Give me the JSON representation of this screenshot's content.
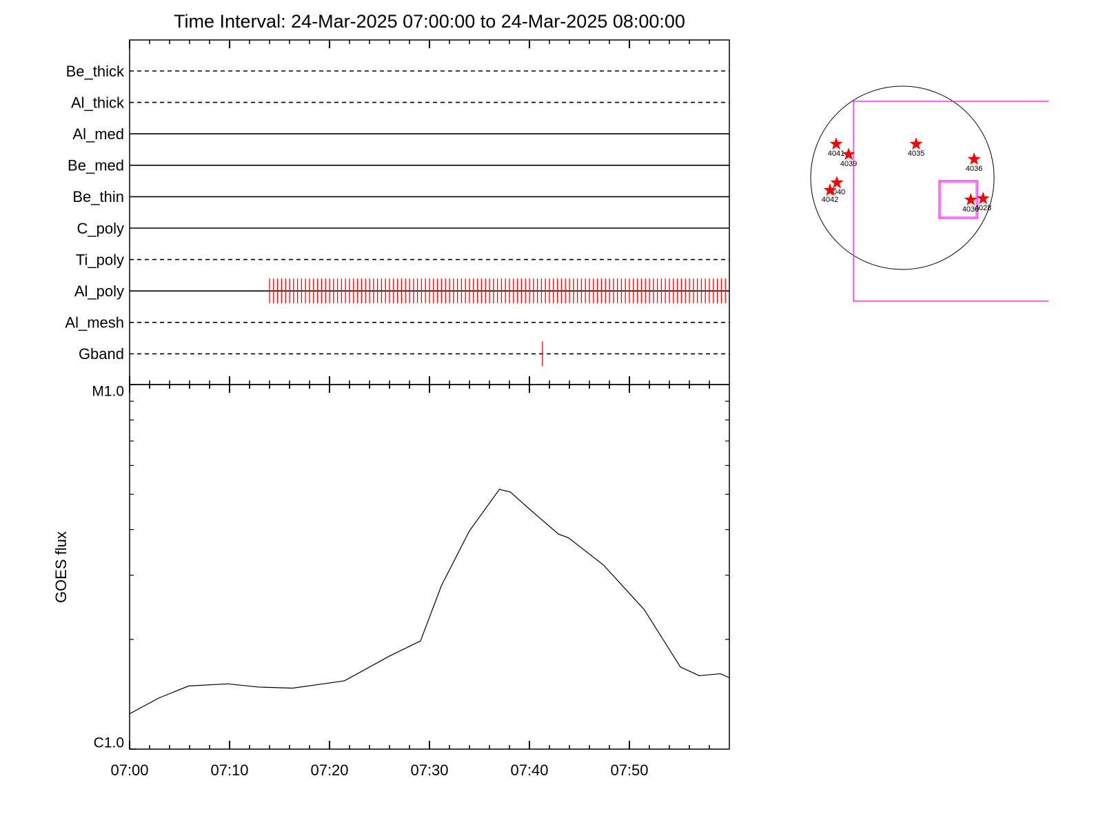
{
  "chart_data": [
    {
      "type": "timeline",
      "title": "Time Interval: 24-Mar-2025 07:00:00 to 24-Mar-2025 08:00:00",
      "xlim": [
        0,
        60
      ],
      "xticks": [
        {
          "value": 0,
          "label": "07:00"
        },
        {
          "value": 10,
          "label": "07:10"
        },
        {
          "value": 20,
          "label": "07:20"
        },
        {
          "value": 30,
          "label": "07:30"
        },
        {
          "value": 40,
          "label": "07:40"
        },
        {
          "value": 50,
          "label": "07:50"
        }
      ],
      "xminorticks": [
        2,
        4,
        6,
        8,
        12,
        14,
        16,
        18,
        22,
        24,
        26,
        28,
        32,
        34,
        36,
        38,
        42,
        44,
        46,
        48,
        52,
        54,
        56,
        58
      ],
      "event_color": "#ff0000",
      "series": [
        {
          "name": "Be_thick",
          "style": "dashed",
          "events": []
        },
        {
          "name": "Al_thick",
          "style": "dashed",
          "events": []
        },
        {
          "name": "Al_med",
          "style": "solid",
          "events": []
        },
        {
          "name": "Be_med",
          "style": "solid",
          "events": []
        },
        {
          "name": "Be_thin",
          "style": "solid",
          "events": []
        },
        {
          "name": "C_poly",
          "style": "solid",
          "events": []
        },
        {
          "name": "Ti_poly",
          "style": "dashed",
          "events": []
        },
        {
          "name": "Al_poly",
          "style": "solid",
          "events": [
            14,
            14.4,
            14.8,
            15.2,
            15.6,
            16,
            16.4,
            16.8,
            17.2,
            17.6,
            18,
            18.4,
            18.8,
            19.2,
            19.6,
            20,
            20.4,
            20.8,
            21.2,
            21.6,
            22,
            22.4,
            22.8,
            23.2,
            23.6,
            24,
            24.4,
            24.8,
            25.2,
            25.6,
            26,
            26.4,
            26.8,
            27.2,
            27.6,
            28,
            28.4,
            28.8,
            29.2,
            29.6,
            30,
            30.4,
            30.8,
            31.2,
            31.6,
            32,
            32.4,
            32.8,
            33.2,
            33.6,
            34,
            34.4,
            34.8,
            35.2,
            35.6,
            36,
            36.4,
            36.8,
            37.2,
            37.6,
            38,
            38.4,
            38.8,
            39.2,
            39.6,
            40,
            40.4,
            40.8,
            41.2,
            41.6,
            42,
            42.4,
            42.8,
            43.2,
            43.6,
            44,
            44.4,
            44.8,
            45.2,
            45.6,
            46,
            46.4,
            46.8,
            47.2,
            47.6,
            48,
            48.4,
            48.8,
            49.2,
            49.6,
            50,
            50.4,
            50.8,
            51.2,
            51.6,
            52,
            52.4,
            52.8,
            53.2,
            53.6,
            54,
            54.4,
            54.8,
            55.2,
            55.6,
            56,
            56.4,
            56.8,
            57.2,
            57.6,
            58,
            58.4,
            58.8,
            59.2,
            59.6
          ]
        },
        {
          "name": "Al_mesh",
          "style": "dashed",
          "events": []
        },
        {
          "name": "Gband",
          "style": "dashed",
          "events": [
            41.3
          ]
        }
      ]
    },
    {
      "type": "line",
      "ylabel": "GOES flux",
      "log_scale": true,
      "color": "#000000",
      "xlim": [
        0,
        60
      ],
      "xticks": [
        {
          "value": 0,
          "label": "07:00"
        },
        {
          "value": 10,
          "label": "07:10"
        },
        {
          "value": 20,
          "label": "07:20"
        },
        {
          "value": 30,
          "label": "07:30"
        },
        {
          "value": 40,
          "label": "07:40"
        },
        {
          "value": 50,
          "label": "07:50"
        }
      ],
      "xminorticks": [
        2,
        4,
        6,
        8,
        12,
        14,
        16,
        18,
        22,
        24,
        26,
        28,
        32,
        34,
        36,
        38,
        42,
        44,
        46,
        48,
        52,
        54,
        56,
        58
      ],
      "ylim": [
        1e-06,
        1e-05
      ],
      "yticks": [
        {
          "value": 1e-06,
          "label": "C1.0"
        },
        {
          "value": 1e-05,
          "label": "M1.0"
        }
      ],
      "yminorticks": [
        2e-06,
        3e-06,
        4e-06,
        5e-06,
        6e-06,
        7e-06,
        8e-06,
        9e-06
      ],
      "x": [
        0,
        2.9,
        5.9,
        9.8,
        12.9,
        16.3,
        20.1,
        21.5,
        26,
        29.1,
        31.2,
        34,
        37,
        38.1,
        40.1,
        42.9,
        43.9,
        47.4,
        51.5,
        55.1,
        57,
        59.1,
        60
      ],
      "values": [
        1.25e-06,
        1.38e-06,
        1.49e-06,
        1.51e-06,
        1.48e-06,
        1.47e-06,
        1.52e-06,
        1.54e-06,
        1.8e-06,
        1.98e-06,
        2.81e-06,
        3.97e-06,
        5.16e-06,
        5.07e-06,
        4.53e-06,
        3.89e-06,
        3.8e-06,
        3.2e-06,
        2.41e-06,
        1.68e-06,
        1.59e-06,
        1.61e-06,
        1.57e-06
      ]
    },
    {
      "type": "locator",
      "color": "#ff0000",
      "regions": [
        {
          "label": "4041",
          "x": -693,
          "y": 354
        },
        {
          "label": "4039",
          "x": -563,
          "y": 245
        },
        {
          "label": "4035",
          "x": 144,
          "y": 354
        },
        {
          "label": "4036",
          "x": 751,
          "y": 195
        },
        {
          "label": "4040",
          "x": -686,
          "y": -51
        },
        {
          "label": "4042",
          "x": -758,
          "y": -130
        },
        {
          "label": "4030",
          "x": 715,
          "y": -231
        },
        {
          "label": "4028",
          "x": 845,
          "y": -217
        }
      ]
    }
  ]
}
